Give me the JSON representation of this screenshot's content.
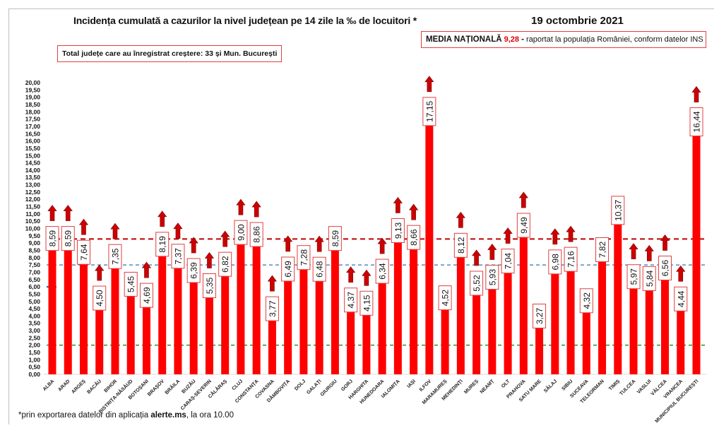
{
  "header": {
    "title": "Incidența cumulată a cazurilor la nivel județean pe 14 zile la ‰ de locuitori *",
    "date": "19 octombrie 2021",
    "media_label": "MEDIA NAȚIONALĂ",
    "media_value": "9,28",
    "media_sep": "-",
    "media_note": "raportat la populația României, conform datelor INS",
    "total_text": "Total județe care au înregistrat creștere:  33 și Mun. București"
  },
  "footnote": {
    "prefix": "*prin exportarea datelor din aplicația ",
    "bold": "alerte.ms",
    "suffix": ", la ora 10.00"
  },
  "colors": {
    "bar": "#ff0000",
    "arrow": "#cc0000",
    "national_line": "#c00000",
    "blue_line": "#2e75b6",
    "green_line": "#00a000",
    "label_border": "#e04040"
  },
  "chart_data": {
    "type": "bar",
    "ylim": [
      0,
      20
    ],
    "ytick_step": 0.5,
    "grid": false,
    "reference_lines": [
      {
        "value": 9.28,
        "color": "#c00000",
        "style": "dashed"
      },
      {
        "value": 7.5,
        "color": "#2e75b6",
        "style": "dashed"
      },
      {
        "value": 2.0,
        "color": "#00a000",
        "style": "dashed"
      }
    ],
    "categories": [
      "ALBA",
      "ARAD",
      "ARGEȘ",
      "BACĂU",
      "BIHOR",
      "BISTRIȚA-NĂSĂUD",
      "BOTOȘANI",
      "BRAȘOV",
      "BRĂILA",
      "BUZĂU",
      "CARAȘ-SEVERIN",
      "CĂLĂRAȘ",
      "CLUJ",
      "CONSTANȚA",
      "COVASNA",
      "DÂMBOVIȚA",
      "DOLJ",
      "GALAȚI",
      "GIURGIU",
      "GORJ",
      "HARGHITA",
      "HUNEDOARA",
      "IALOMIȚA",
      "IAȘI",
      "ILFOV",
      "MARAMUREȘ",
      "MEHEDINȚI",
      "MUREȘ",
      "NEAMȚ",
      "OLT",
      "PRAHOVA",
      "SATU MARE",
      "SĂLAJ",
      "SIBIU",
      "SUCEAVA",
      "TELEORMAN",
      "TIMIȘ",
      "TULCEA",
      "VASLUI",
      "VÂLCEA",
      "VRANCEA",
      "MUNICIPIUL BUCUREȘTI"
    ],
    "values": [
      8.59,
      8.59,
      7.64,
      4.5,
      7.35,
      5.45,
      4.69,
      8.19,
      7.37,
      6.39,
      5.35,
      6.82,
      9.0,
      8.86,
      3.77,
      6.49,
      7.28,
      6.48,
      8.59,
      4.37,
      4.15,
      6.34,
      9.13,
      8.66,
      17.15,
      4.52,
      8.12,
      5.52,
      5.93,
      7.04,
      9.49,
      3.27,
      6.98,
      7.16,
      4.32,
      7.82,
      10.37,
      5.97,
      5.84,
      6.56,
      4.44,
      16.44
    ],
    "labels": [
      "8,59",
      "8,59",
      "7,64",
      "4,50",
      "7,35",
      "5,45",
      "4,69",
      "8,19",
      "7,37",
      "6,39",
      "5,35",
      "6,82",
      "9,00",
      "8,86",
      "3,77",
      "6,49",
      "7,28",
      "6,48",
      "8,59",
      "4,37",
      "4,15",
      "6,34",
      "9,13",
      "8,66",
      "17,15",
      "4,52",
      "8,12",
      "5,52",
      "5,93",
      "7,04",
      "9,49",
      "3,27",
      "6,98",
      "7,16",
      "4,32",
      "7,82",
      "10,37",
      "5,97",
      "5,84",
      "6,56",
      "4,44",
      "16,44"
    ],
    "increase": [
      true,
      true,
      true,
      true,
      true,
      false,
      true,
      true,
      true,
      true,
      true,
      true,
      true,
      true,
      true,
      true,
      false,
      true,
      false,
      true,
      true,
      true,
      true,
      true,
      true,
      false,
      true,
      true,
      true,
      true,
      true,
      false,
      true,
      true,
      false,
      false,
      false,
      true,
      true,
      true,
      true,
      true
    ]
  }
}
